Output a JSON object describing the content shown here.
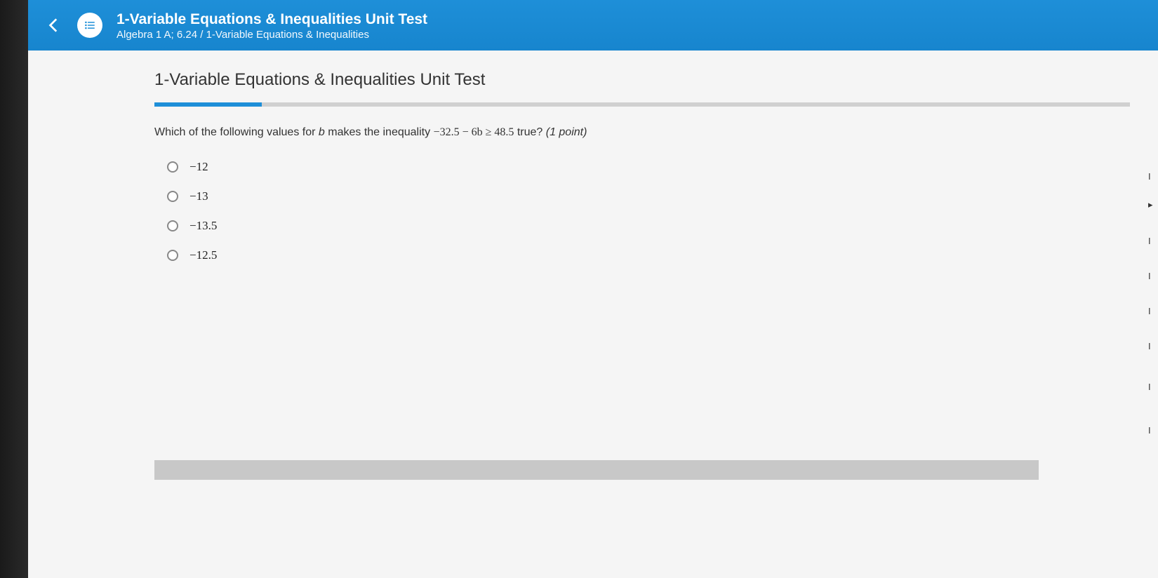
{
  "header": {
    "title": "1-Variable Equations & Inequalities Unit Test",
    "subtitle": "Algebra 1 A; 6.24 / 1-Variable Equations & Inequalities"
  },
  "page": {
    "title": "1-Variable Equations & Inequalities Unit Test",
    "progress_percent": 11
  },
  "question": {
    "prefix": "Which of the following values for ",
    "variable": "b",
    "middle": " makes the inequality ",
    "math": "−32.5 − 6b ≥ 48.5",
    "suffix": " true? ",
    "points": "(1 point)"
  },
  "options": [
    {
      "label": "−12"
    },
    {
      "label": "−13"
    },
    {
      "label": "−13.5"
    },
    {
      "label": "−12.5"
    }
  ],
  "colors": {
    "header_bg": "#1e8fd8",
    "progress_fill": "#1e8fd8",
    "progress_track": "#d0d0d0",
    "page_bg": "#f5f5f5",
    "text": "#333333"
  }
}
